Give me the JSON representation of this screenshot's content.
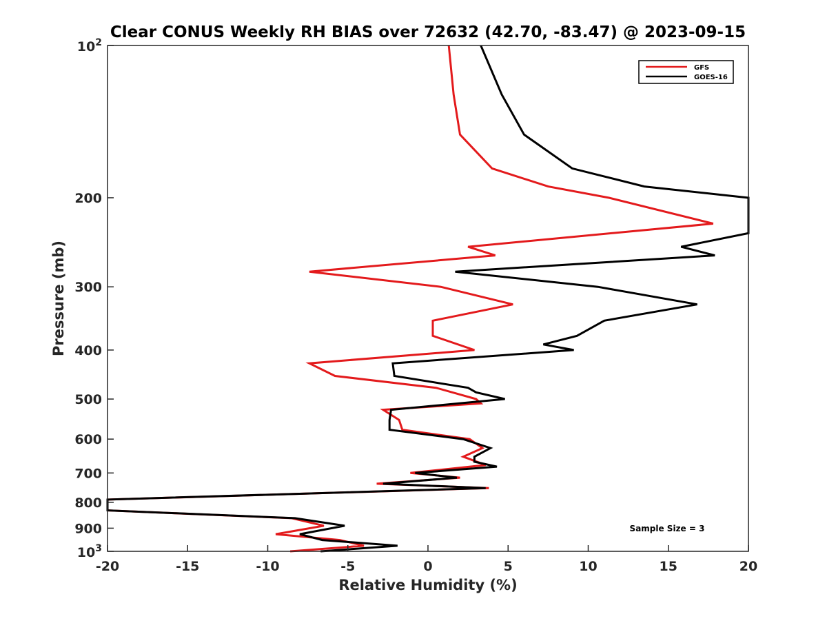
{
  "chart_data": {
    "type": "line",
    "title": "Clear CONUS Weekly RH BIAS over 72632 (42.70, -83.47) @ 2023-09-15",
    "xlabel": "Relative Humidity (%)",
    "ylabel": "Pressure (mb)",
    "xlim": [
      -20,
      20
    ],
    "ylim": [
      100,
      1000
    ],
    "y_scale": "log",
    "y_reversed": true,
    "x_ticks": [
      "-20",
      "-15",
      "-10",
      "-5",
      "0",
      "5",
      "10",
      "15",
      "20"
    ],
    "y_ticks": [
      {
        "value": 200,
        "label": "200"
      },
      {
        "value": 300,
        "label": "300"
      },
      {
        "value": 400,
        "label": "400"
      },
      {
        "value": 500,
        "label": "500"
      },
      {
        "value": 600,
        "label": "600"
      },
      {
        "value": 700,
        "label": "700"
      },
      {
        "value": 800,
        "label": "800"
      },
      {
        "value": 900,
        "label": "900"
      }
    ],
    "y_power_ticks": [
      {
        "value": 100,
        "base": "10",
        "exp": "2"
      },
      {
        "value": 1000,
        "base": "10",
        "exp": "3"
      }
    ],
    "legend_position": "top-right",
    "annotation": "Sample Size = 3",
    "series": [
      {
        "name": "GFS",
        "color": "#e31a1c",
        "points": [
          [
            1.3,
            100
          ],
          [
            1.6,
            125
          ],
          [
            2.0,
            150
          ],
          [
            4.0,
            175
          ],
          [
            7.5,
            190
          ],
          [
            11.3,
            200
          ],
          [
            17.8,
            225
          ],
          [
            2.5,
            250
          ],
          [
            4.2,
            260
          ],
          [
            -7.4,
            280
          ],
          [
            0.8,
            300
          ],
          [
            5.3,
            325
          ],
          [
            0.3,
            350
          ],
          [
            0.3,
            375
          ],
          [
            2.9,
            400
          ],
          [
            -7.4,
            425
          ],
          [
            -5.8,
            450
          ],
          [
            0.5,
            475
          ],
          [
            3.0,
            500
          ],
          [
            3.3,
            510
          ],
          [
            -2.8,
            525
          ],
          [
            -1.8,
            550
          ],
          [
            -1.6,
            575
          ],
          [
            2.6,
            600
          ],
          [
            3.4,
            625
          ],
          [
            2.2,
            650
          ],
          [
            3.6,
            675
          ],
          [
            -1.1,
            700
          ],
          [
            2.0,
            715
          ],
          [
            -3.2,
            735
          ],
          [
            3.8,
            750
          ],
          [
            -20.0,
            790
          ],
          [
            -20.0,
            830
          ],
          [
            -8.5,
            860
          ],
          [
            -6.5,
            890
          ],
          [
            -9.5,
            925
          ],
          [
            -5.5,
            950
          ],
          [
            -4.0,
            975
          ],
          [
            -8.6,
            1000
          ]
        ]
      },
      {
        "name": "GOES-16",
        "color": "#000000",
        "points": [
          [
            3.3,
            100
          ],
          [
            4.6,
            125
          ],
          [
            6.0,
            150
          ],
          [
            9.0,
            175
          ],
          [
            13.5,
            190
          ],
          [
            20.0,
            200
          ],
          [
            20.0,
            235
          ],
          [
            15.8,
            250
          ],
          [
            17.9,
            260
          ],
          [
            1.7,
            280
          ],
          [
            10.6,
            300
          ],
          [
            16.8,
            325
          ],
          [
            11.0,
            350
          ],
          [
            9.3,
            375
          ],
          [
            7.2,
            390
          ],
          [
            9.1,
            400
          ],
          [
            -2.2,
            425
          ],
          [
            -2.1,
            450
          ],
          [
            2.5,
            475
          ],
          [
            3.0,
            485
          ],
          [
            4.8,
            500
          ],
          [
            -2.3,
            525
          ],
          [
            -2.4,
            550
          ],
          [
            -2.4,
            575
          ],
          [
            2.2,
            600
          ],
          [
            3.9,
            625
          ],
          [
            2.9,
            650
          ],
          [
            2.9,
            665
          ],
          [
            4.3,
            680
          ],
          [
            -0.8,
            700
          ],
          [
            1.8,
            715
          ],
          [
            -2.8,
            735
          ],
          [
            3.6,
            750
          ],
          [
            -20.0,
            790
          ],
          [
            -20.0,
            830
          ],
          [
            -8.3,
            860
          ],
          [
            -5.2,
            890
          ],
          [
            -8.0,
            925
          ],
          [
            -6.6,
            950
          ],
          [
            -1.9,
            975
          ],
          [
            -6.7,
            1000
          ]
        ]
      }
    ]
  }
}
